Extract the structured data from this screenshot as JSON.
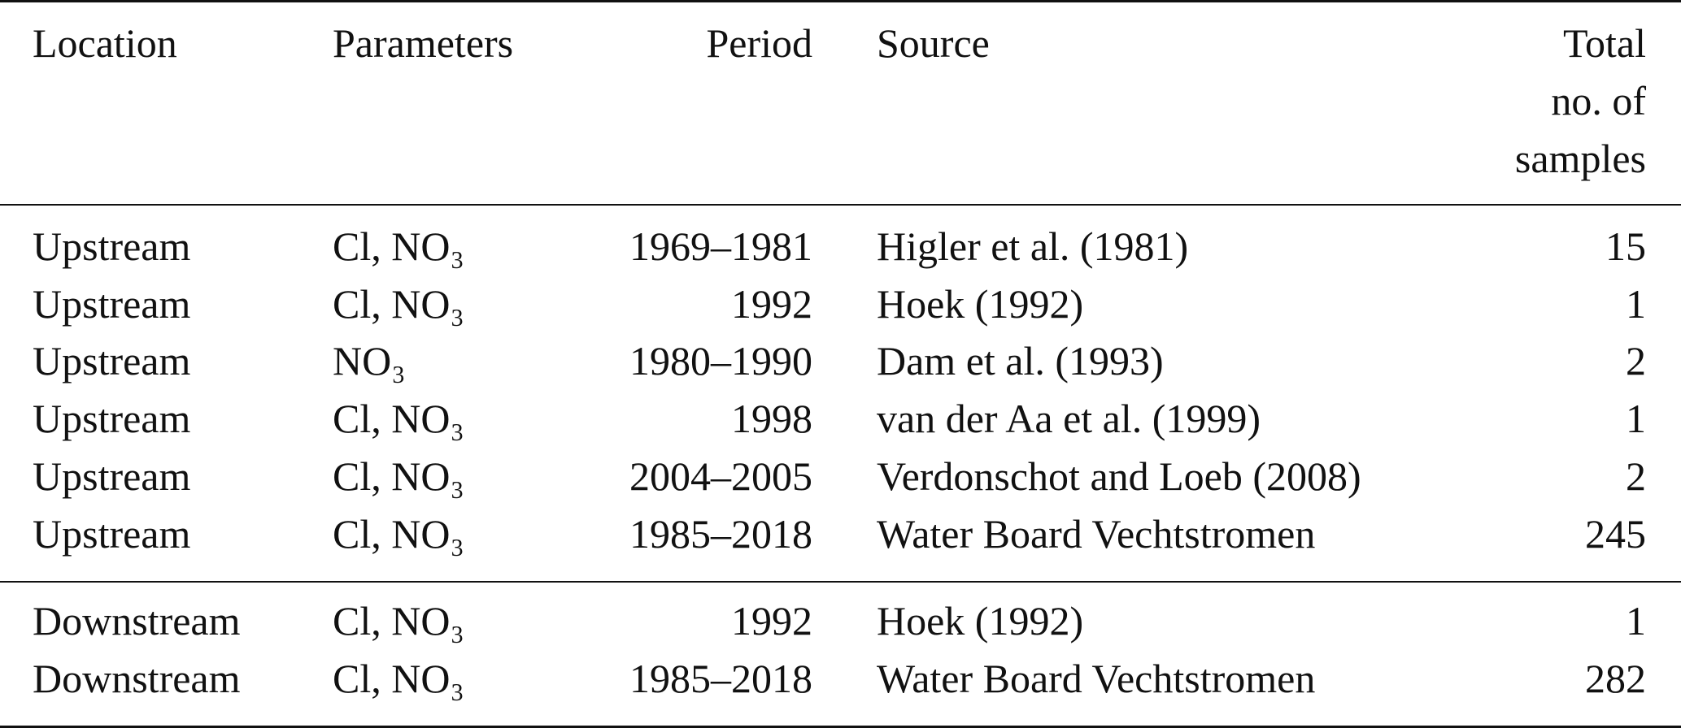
{
  "table": {
    "header": [
      "Location",
      "Parameters",
      "Period",
      "Source",
      [
        "Total",
        "no. of",
        "samples"
      ]
    ],
    "groups": [
      [
        [
          "Upstream",
          "Cl, NO₃",
          "1969–1981",
          "Higler et al. (1981)",
          15
        ],
        [
          "Upstream",
          "Cl, NO₃",
          "1992",
          "Hoek (1992)",
          1
        ],
        [
          "Upstream",
          "NO₃",
          "1980–1990",
          "Dam et al. (1993)",
          2
        ],
        [
          "Upstream",
          "Cl, NO₃",
          "1998",
          "van der Aa et al. (1999)",
          1
        ],
        [
          "Upstream",
          "Cl, NO₃",
          "2004–2005",
          "Verdonschot and Loeb (2008)",
          2
        ],
        [
          "Upstream",
          "Cl, NO₃",
          "1985–2018",
          "Water Board Vechtstromen",
          245
        ]
      ],
      [
        [
          "Downstream",
          "Cl, NO₃",
          "1992",
          "Hoek (1992)",
          1
        ],
        [
          "Downstream",
          "Cl, NO₃",
          "1985–2018",
          "Water Board Vechtstromen",
          282
        ]
      ]
    ]
  }
}
